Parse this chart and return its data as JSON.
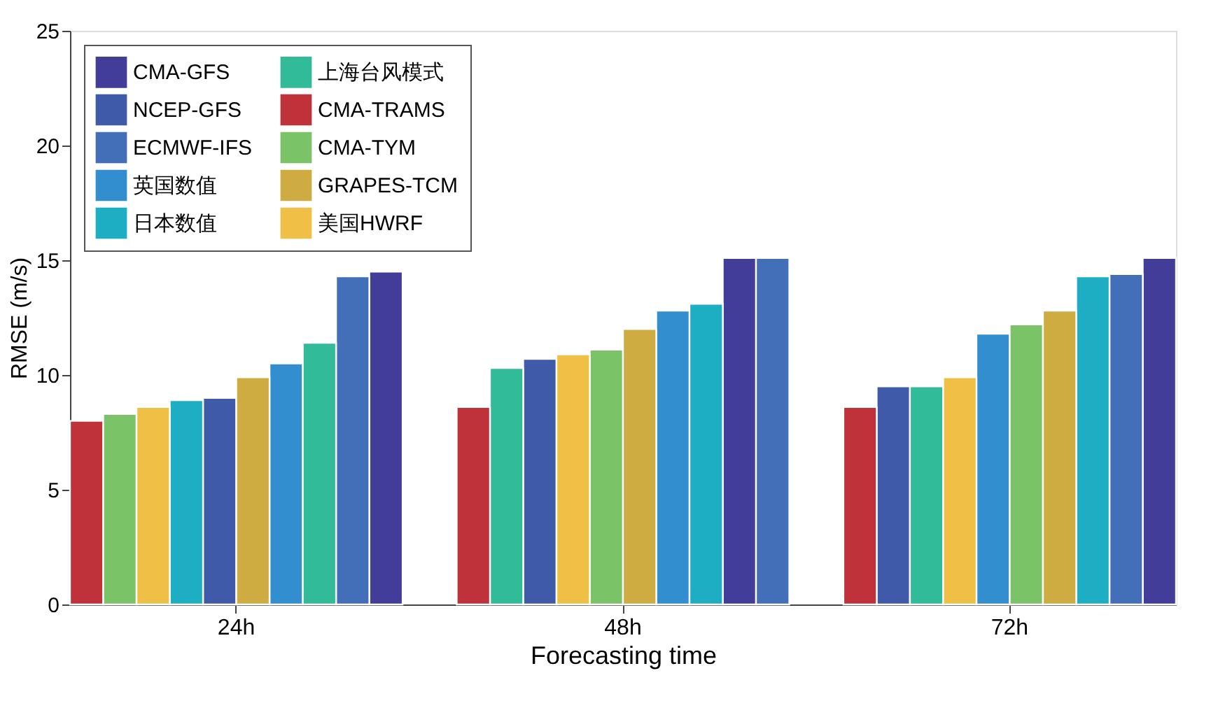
{
  "chart_data": {
    "type": "bar",
    "xlabel": "Forecasting time",
    "ylabel": "RMSE (m/s)",
    "categories": [
      "24h",
      "48h",
      "72h"
    ],
    "series": [
      {
        "name": "CMA-GFS",
        "color": "#413d98",
        "values": [
          14.5,
          15.1,
          15.1
        ]
      },
      {
        "name": "NCEP-GFS",
        "color": "#3f5aa8",
        "values": [
          9.0,
          10.7,
          9.5
        ]
      },
      {
        "name": "ECMWF-IFS",
        "color": "#436eb8",
        "values": [
          14.3,
          15.1,
          14.4
        ]
      },
      {
        "name": "英国数值",
        "color": "#338ecf",
        "values": [
          10.5,
          12.8,
          11.8
        ]
      },
      {
        "name": "日本数值",
        "color": "#1eaec4",
        "values": [
          8.9,
          13.1,
          14.3
        ]
      },
      {
        "name": "上海台风模式",
        "color": "#32bb98",
        "values": [
          11.4,
          10.3,
          9.5
        ]
      },
      {
        "name": "CMA-TRAMS",
        "color": "#bf3239",
        "values": [
          8.0,
          8.6,
          8.6
        ]
      },
      {
        "name": "CMA-TYM",
        "color": "#7ac366",
        "values": [
          8.3,
          11.1,
          12.2
        ]
      },
      {
        "name": "GRAPES-TCM",
        "color": "#ceac42",
        "values": [
          9.9,
          12.0,
          12.8
        ]
      },
      {
        "name": "美国HWRF",
        "color": "#f0c046",
        "values": [
          8.6,
          10.9,
          9.9
        ]
      }
    ],
    "ylim": [
      0,
      25
    ],
    "yticks": [
      0,
      5,
      10,
      15,
      20,
      25
    ],
    "grid": false,
    "legend": "top left"
  }
}
